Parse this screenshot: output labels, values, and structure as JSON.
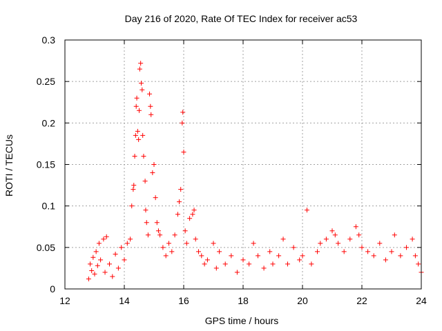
{
  "chart_data": {
    "type": "scatter",
    "title": "Day 216 of 2020, Rate Of TEC Index for receiver ac53",
    "xlabel": "GPS time / hours",
    "ylabel": "ROTI / TECUs",
    "xlim": [
      12,
      24
    ],
    "ylim": [
      0,
      0.3
    ],
    "xticks": [
      12,
      14,
      16,
      18,
      20,
      22,
      24
    ],
    "xtick_labels": [
      "12",
      "14",
      "16",
      "18",
      "20",
      "22",
      "24"
    ],
    "yticks": [
      0,
      0.05,
      0.1,
      0.15,
      0.2,
      0.25,
      0.3
    ],
    "ytick_labels": [
      "0",
      "0.05",
      "0.1",
      "0.15",
      "0.2",
      "0.25",
      "0.3"
    ],
    "grid": true,
    "marker": "plus",
    "color": "#ff0000",
    "series": [
      {
        "name": "ROTI",
        "points": [
          [
            12.8,
            0.012
          ],
          [
            12.85,
            0.03
          ],
          [
            12.9,
            0.022
          ],
          [
            12.95,
            0.038
          ],
          [
            13.0,
            0.018
          ],
          [
            13.05,
            0.045
          ],
          [
            13.1,
            0.028
          ],
          [
            13.15,
            0.055
          ],
          [
            13.2,
            0.035
          ],
          [
            13.3,
            0.06
          ],
          [
            13.35,
            0.02
          ],
          [
            13.4,
            0.063
          ],
          [
            13.5,
            0.03
          ],
          [
            13.6,
            0.015
          ],
          [
            13.7,
            0.042
          ],
          [
            13.8,
            0.025
          ],
          [
            13.9,
            0.05
          ],
          [
            14.0,
            0.035
          ],
          [
            14.1,
            0.055
          ],
          [
            14.2,
            0.06
          ],
          [
            14.25,
            0.1
          ],
          [
            14.3,
            0.12
          ],
          [
            14.32,
            0.125
          ],
          [
            14.35,
            0.16
          ],
          [
            14.38,
            0.185
          ],
          [
            14.4,
            0.22
          ],
          [
            14.42,
            0.23
          ],
          [
            14.45,
            0.19
          ],
          [
            14.48,
            0.18
          ],
          [
            14.5,
            0.215
          ],
          [
            14.52,
            0.265
          ],
          [
            14.55,
            0.272
          ],
          [
            14.57,
            0.248
          ],
          [
            14.6,
            0.24
          ],
          [
            14.62,
            0.185
          ],
          [
            14.65,
            0.16
          ],
          [
            14.7,
            0.13
          ],
          [
            14.72,
            0.095
          ],
          [
            14.75,
            0.08
          ],
          [
            14.8,
            0.065
          ],
          [
            14.85,
            0.235
          ],
          [
            14.88,
            0.22
          ],
          [
            14.9,
            0.21
          ],
          [
            14.95,
            0.14
          ],
          [
            15.0,
            0.15
          ],
          [
            15.05,
            0.11
          ],
          [
            15.1,
            0.08
          ],
          [
            15.15,
            0.07
          ],
          [
            15.2,
            0.065
          ],
          [
            15.3,
            0.05
          ],
          [
            15.4,
            0.04
          ],
          [
            15.5,
            0.055
          ],
          [
            15.6,
            0.045
          ],
          [
            15.7,
            0.065
          ],
          [
            15.8,
            0.09
          ],
          [
            15.85,
            0.105
          ],
          [
            15.9,
            0.12
          ],
          [
            15.95,
            0.2
          ],
          [
            15.97,
            0.213
          ],
          [
            16.0,
            0.165
          ],
          [
            16.05,
            0.07
          ],
          [
            16.1,
            0.055
          ],
          [
            16.2,
            0.085
          ],
          [
            16.3,
            0.09
          ],
          [
            16.35,
            0.095
          ],
          [
            16.4,
            0.06
          ],
          [
            16.5,
            0.045
          ],
          [
            16.6,
            0.04
          ],
          [
            16.7,
            0.03
          ],
          [
            16.8,
            0.035
          ],
          [
            17.0,
            0.055
          ],
          [
            17.1,
            0.025
          ],
          [
            17.2,
            0.045
          ],
          [
            17.4,
            0.03
          ],
          [
            17.6,
            0.04
          ],
          [
            17.8,
            0.02
          ],
          [
            18.0,
            0.035
          ],
          [
            18.2,
            0.03
          ],
          [
            18.35,
            0.055
          ],
          [
            18.5,
            0.04
          ],
          [
            18.7,
            0.025
          ],
          [
            18.9,
            0.045
          ],
          [
            19.0,
            0.03
          ],
          [
            19.2,
            0.04
          ],
          [
            19.35,
            0.06
          ],
          [
            19.5,
            0.03
          ],
          [
            19.7,
            0.05
          ],
          [
            19.9,
            0.035
          ],
          [
            20.0,
            0.04
          ],
          [
            20.15,
            0.095
          ],
          [
            20.3,
            0.03
          ],
          [
            20.5,
            0.045
          ],
          [
            20.6,
            0.055
          ],
          [
            20.8,
            0.06
          ],
          [
            21.0,
            0.07
          ],
          [
            21.1,
            0.065
          ],
          [
            21.2,
            0.055
          ],
          [
            21.4,
            0.045
          ],
          [
            21.6,
            0.06
          ],
          [
            21.8,
            0.075
          ],
          [
            21.9,
            0.065
          ],
          [
            22.0,
            0.05
          ],
          [
            22.2,
            0.045
          ],
          [
            22.4,
            0.04
          ],
          [
            22.6,
            0.055
          ],
          [
            22.8,
            0.035
          ],
          [
            23.0,
            0.045
          ],
          [
            23.1,
            0.065
          ],
          [
            23.3,
            0.04
          ],
          [
            23.5,
            0.05
          ],
          [
            23.7,
            0.06
          ],
          [
            23.8,
            0.04
          ],
          [
            23.9,
            0.03
          ],
          [
            24.0,
            0.02
          ]
        ]
      }
    ]
  }
}
